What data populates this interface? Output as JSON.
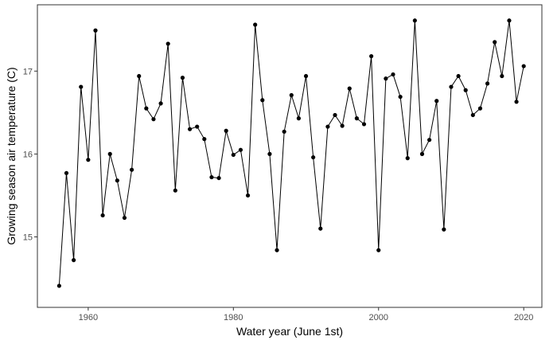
{
  "chart_data": {
    "type": "line",
    "title": "",
    "xlabel": "Water year (June 1st)",
    "ylabel": "Growing season air temperature (C)",
    "xlim": [
      1953,
      2022.5
    ],
    "ylim": [
      14.15,
      17.8
    ],
    "x_ticks": [
      1960,
      1980,
      2000,
      2020
    ],
    "y_ticks": [
      15,
      16,
      17
    ],
    "grid": false,
    "legend": "none",
    "colors": {
      "line": "#000000",
      "point": "#000000",
      "panel_border": "#333333",
      "tick_text": "#4d4d4d"
    },
    "series": [
      {
        "x": [
          1956,
          1957,
          1958,
          1959,
          1960,
          1961,
          1962,
          1963,
          1964,
          1965,
          1966,
          1967,
          1968,
          1969,
          1970,
          1971,
          1972,
          1973,
          1974,
          1975,
          1976,
          1977,
          1978,
          1979,
          1980,
          1981,
          1982,
          1983,
          1984,
          1985,
          1986,
          1987,
          1988,
          1989,
          1990,
          1991,
          1992,
          1993,
          1994,
          1995,
          1996,
          1997,
          1998,
          1999,
          2000,
          2001,
          2002,
          2003,
          2004,
          2005,
          2006,
          2007,
          2008,
          2009,
          2010,
          2011,
          2012,
          2013,
          2014,
          2015,
          2016,
          2017,
          2018,
          2019,
          2020
        ],
        "y": [
          14.41,
          15.77,
          14.72,
          16.81,
          15.93,
          17.49,
          15.26,
          16.0,
          15.68,
          15.23,
          15.81,
          16.94,
          16.55,
          16.42,
          16.61,
          17.33,
          15.56,
          16.92,
          16.3,
          16.33,
          16.18,
          15.72,
          15.71,
          16.28,
          15.99,
          16.05,
          15.5,
          17.56,
          16.65,
          16.0,
          14.84,
          16.27,
          16.71,
          16.43,
          16.94,
          15.96,
          15.1,
          16.33,
          16.47,
          16.34,
          16.79,
          16.43,
          16.36,
          17.18,
          14.84,
          16.91,
          16.96,
          16.69,
          15.95,
          17.61,
          16.0,
          16.17,
          16.64,
          15.09,
          16.81,
          16.94,
          16.77,
          16.47,
          16.55,
          16.85,
          17.35,
          16.94,
          17.61,
          16.63,
          17.06
        ]
      }
    ]
  }
}
